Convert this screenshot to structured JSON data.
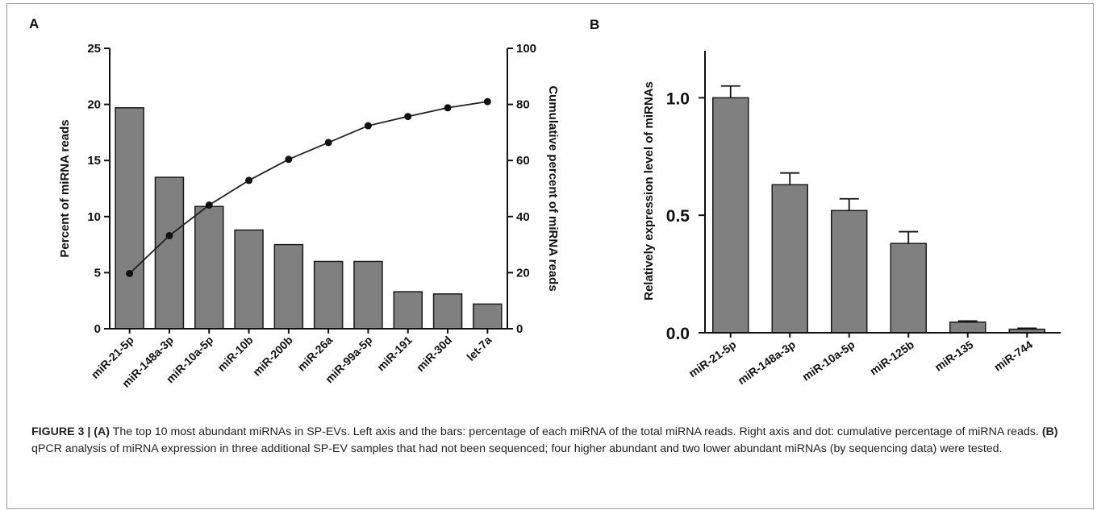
{
  "panel_a_letter": "A",
  "panel_b_letter": "B",
  "caption": {
    "label": "FIGURE 3 | ",
    "a_tag": "(A)",
    "a_text": " The top 10 most abundant miRNAs in SP-EVs. Left axis and the bars: percentage of each miRNA of the total miRNA reads. Right axis and dot: cumulative percentage of miRNA reads. ",
    "b_tag": "(B)",
    "b_text": " qPCR analysis of miRNA expression in three additional SP-EV samples that had not been sequenced; four higher abundant and two lower abundant miRNAs (by sequencing data) were tested."
  },
  "chart_data": [
    {
      "type": "bar",
      "panel": "A",
      "categories": [
        "miR-21-5p",
        "miR-148a-3p",
        "miR-10a-5p",
        "miR-10b",
        "miR-200b",
        "miR-26a",
        "miR-99a-5p",
        "miR-191",
        "miR-30d",
        "let-7a"
      ],
      "series": [
        {
          "values": [
            19.7,
            13.5,
            10.9,
            8.8,
            7.5,
            6.0,
            6.0,
            3.3,
            3.1,
            2.2
          ],
          "axis": "left"
        },
        {
          "type": "line",
          "values": [
            19.7,
            33.2,
            44.1,
            52.9,
            60.4,
            66.4,
            72.4,
            75.7,
            78.8,
            81.0
          ],
          "axis": "right"
        }
      ],
      "ylabel": "Percent of miRNA reads",
      "y2label": "Cumulative percent of miRNA reads",
      "ylim": [
        0,
        25
      ],
      "y2lim": [
        0,
        100
      ],
      "yticks": [
        0,
        5,
        10,
        15,
        20,
        25
      ],
      "y2ticks": [
        0,
        20,
        40,
        60,
        80,
        100
      ],
      "bar_color": "#808080",
      "line_color": "#222222",
      "grid": false
    },
    {
      "type": "bar",
      "panel": "B",
      "categories": [
        "miR-21-5p",
        "miR-148a-3p",
        "miR-10a-5p",
        "miR-125b",
        "miR-135",
        "miR-744"
      ],
      "values": [
        1.0,
        0.63,
        0.52,
        0.38,
        0.045,
        0.015
      ],
      "errors": [
        0.05,
        0.05,
        0.05,
        0.05,
        0.005,
        0.004
      ],
      "ylabel": "Relatively expression level of miRNAs",
      "ylim": [
        0,
        1.2
      ],
      "yticks": [
        "0.0",
        "0.5",
        "1.0"
      ],
      "bar_color": "#808080",
      "grid": false
    }
  ]
}
